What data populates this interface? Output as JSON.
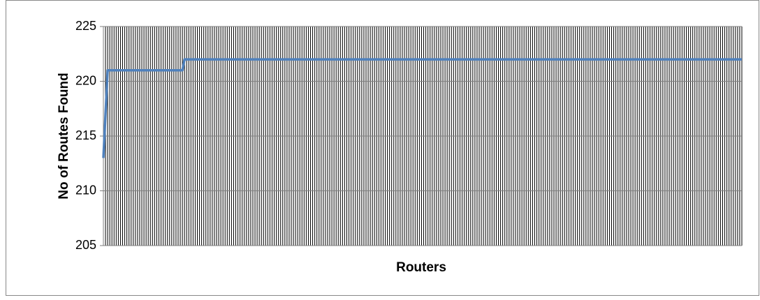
{
  "chart_data": {
    "type": "line",
    "y_label": "No of Routes Found",
    "x_label": "Routers",
    "categories": [
      null,
      null,
      null,
      null,
      null,
      null,
      null,
      null,
      null,
      null,
      null,
      null,
      null,
      null,
      null,
      null,
      null,
      null,
      null,
      null,
      null,
      null,
      null,
      null,
      null,
      null,
      null,
      null,
      null,
      null,
      null,
      null,
      null,
      null,
      null,
      null,
      null,
      null,
      null,
      null,
      null,
      null,
      null,
      null,
      null,
      null,
      null,
      null,
      null,
      null,
      null,
      null,
      null,
      null,
      null,
      null,
      null,
      null,
      null,
      null,
      null,
      null,
      null,
      null,
      null,
      null,
      null,
      null,
      null,
      null,
      null,
      null,
      null,
      null,
      null,
      null,
      null,
      null,
      null,
      null,
      null,
      null,
      null,
      null,
      null,
      null,
      null,
      null,
      null,
      null,
      null,
      null,
      null,
      null,
      null,
      null,
      null,
      null,
      null,
      null,
      null,
      null,
      null,
      null,
      null,
      null,
      null,
      null,
      null,
      null,
      null,
      null,
      null,
      null,
      null,
      null,
      null,
      null,
      null,
      null,
      null,
      null,
      null,
      null,
      null,
      null,
      null,
      null,
      null,
      null,
      null,
      null,
      null,
      null,
      null,
      null,
      null,
      null,
      null,
      null,
      null,
      null,
      null,
      null,
      null,
      null,
      null,
      null,
      null,
      null,
      null,
      null,
      null,
      null,
      null,
      null,
      null,
      null,
      null,
      null,
      null,
      null,
      null,
      null,
      null,
      null,
      null,
      null,
      null,
      null,
      null,
      null,
      null,
      null,
      null,
      null,
      null,
      null,
      null,
      null,
      null,
      null,
      null,
      null,
      null,
      null,
      null,
      null,
      null,
      null,
      null,
      null,
      null,
      null,
      null,
      null,
      null,
      null,
      null,
      null,
      null,
      null,
      null,
      null,
      null,
      null,
      null,
      null,
      null,
      null,
      null,
      null,
      null,
      null,
      null,
      null,
      null,
      null,
      null,
      null,
      null,
      null,
      null,
      null,
      null,
      null,
      null,
      null,
      null,
      null,
      null,
      null,
      null,
      null,
      null,
      null,
      null,
      null,
      null,
      null,
      null,
      null,
      null,
      null,
      null,
      null,
      null,
      null,
      null,
      null,
      null,
      null,
      null,
      null,
      null,
      null,
      null,
      null,
      null,
      null,
      null,
      null,
      null,
      null,
      null,
      null,
      null,
      null,
      null,
      null,
      null,
      null,
      null,
      null,
      null,
      null,
      null,
      null,
      null,
      null,
      null,
      null,
      null,
      null,
      null,
      null,
      null,
      null,
      null,
      null,
      null,
      null,
      null,
      null,
      null,
      null,
      null,
      null,
      null,
      null
    ],
    "values": [
      213,
      217,
      221,
      221,
      221,
      221,
      221,
      221,
      221,
      221,
      221,
      221,
      221,
      221,
      221,
      221,
      221,
      221,
      221,
      221,
      221,
      221,
      221,
      221,
      221,
      221,
      221,
      221,
      221,
      221,
      221,
      221,
      221,
      221,
      221,
      221,
      221,
      221,
      222,
      222,
      222,
      222,
      222,
      222,
      222,
      222,
      222,
      222,
      222,
      222,
      222,
      222,
      222,
      222,
      222,
      222,
      222,
      222,
      222,
      222,
      222,
      222,
      222,
      222,
      222,
      222,
      222,
      222,
      222,
      222,
      222,
      222,
      222,
      222,
      222,
      222,
      222,
      222,
      222,
      222,
      222,
      222,
      222,
      222,
      222,
      222,
      222,
      222,
      222,
      222,
      222,
      222,
      222,
      222,
      222,
      222,
      222,
      222,
      222,
      222,
      222,
      222,
      222,
      222,
      222,
      222,
      222,
      222,
      222,
      222,
      222,
      222,
      222,
      222,
      222,
      222,
      222,
      222,
      222,
      222,
      222,
      222,
      222,
      222,
      222,
      222,
      222,
      222,
      222,
      222,
      222,
      222,
      222,
      222,
      222,
      222,
      222,
      222,
      222,
      222,
      222,
      222,
      222,
      222,
      222,
      222,
      222,
      222,
      222,
      222,
      222,
      222,
      222,
      222,
      222,
      222,
      222,
      222,
      222,
      222,
      222,
      222,
      222,
      222,
      222,
      222,
      222,
      222,
      222,
      222,
      222,
      222,
      222,
      222,
      222,
      222,
      222,
      222,
      222,
      222,
      222,
      222,
      222,
      222,
      222,
      222,
      222,
      222,
      222,
      222,
      222,
      222,
      222,
      222,
      222,
      222,
      222,
      222,
      222,
      222,
      222,
      222,
      222,
      222,
      222,
      222,
      222,
      222,
      222,
      222,
      222,
      222,
      222,
      222,
      222,
      222,
      222,
      222,
      222,
      222,
      222,
      222,
      222,
      222,
      222,
      222,
      222,
      222,
      222,
      222,
      222,
      222,
      222,
      222,
      222,
      222,
      222,
      222,
      222,
      222,
      222,
      222,
      222,
      222,
      222,
      222,
      222,
      222,
      222,
      222,
      222,
      222,
      222,
      222,
      222,
      222,
      222,
      222,
      222,
      222,
      222,
      222,
      222,
      222,
      222,
      222,
      222,
      222,
      222,
      222,
      222,
      222,
      222,
      222,
      222,
      222,
      222,
      222,
      222,
      222,
      222,
      222,
      222,
      222,
      222,
      222,
      222,
      222,
      222,
      222,
      222,
      222,
      222,
      222,
      222,
      222,
      222,
      222,
      222,
      222
    ],
    "color": "#4f81bd",
    "ylim": [
      205,
      225
    ],
    "yticks": [
      205,
      210,
      215,
      220,
      225
    ],
    "grid": true,
    "xgrid": true
  }
}
